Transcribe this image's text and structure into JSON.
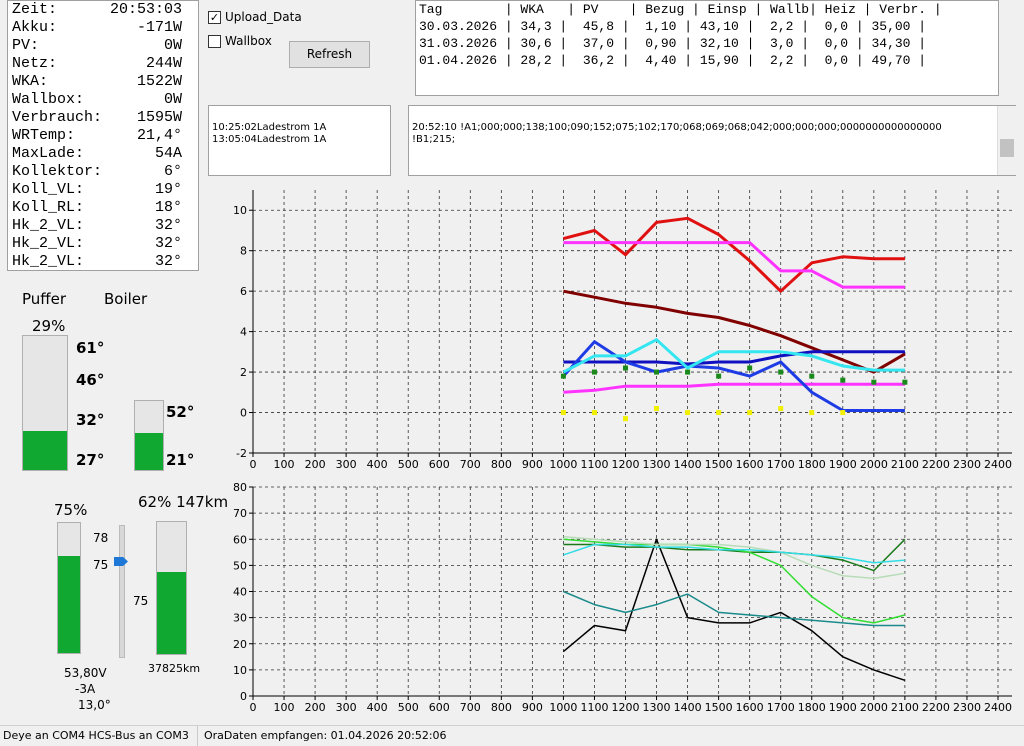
{
  "status": {
    "rows": [
      {
        "label": "Zeit:",
        "value": "20:53:03"
      },
      {
        "label": "Akku:",
        "value": "-171W"
      },
      {
        "label": "PV:",
        "value": "0W"
      },
      {
        "label": "Netz:",
        "value": "244W"
      },
      {
        "label": "WKA:",
        "value": "1522W"
      },
      {
        "label": "Wallbox:",
        "value": "0W"
      },
      {
        "label": "Verbrauch:",
        "value": "1595W"
      },
      {
        "label": "WRTemp:",
        "value": "21,4°"
      },
      {
        "label": "MaxLade:",
        "value": "54A"
      },
      {
        "label": "Kollektor:",
        "value": "6°"
      },
      {
        "label": "Koll_VL:",
        "value": "19°"
      },
      {
        "label": "Koll_RL:",
        "value": "18°"
      },
      {
        "label": "Hk_2_VL:",
        "value": "32°"
      },
      {
        "label": "Hk_2_VL:",
        "value": "32°"
      },
      {
        "label": "Hk_2_VL:",
        "value": "32°"
      }
    ]
  },
  "controls": {
    "upload_data": {
      "label": "Upload_Data",
      "checked": true
    },
    "wallbox": {
      "label": "Wallbox",
      "checked": false
    },
    "refresh": "Refresh"
  },
  "table": {
    "header": "Tag        | WKA   | PV    | Bezug | Einsp | Wallb| Heiz | Verbr. |",
    "rows": [
      "30.03.2026 | 34,3 |  45,8 |  1,10 | 43,10 |  2,2 |  0,0 | 35,00 |",
      "31.03.2026 | 30,6 |  37,0 |  0,90 | 32,10 |  3,0 |  0,0 | 34,30 |",
      "01.04.2026 | 28,2 |  36,2 |  4,40 | 15,90 |  2,2 |  0,0 | 49,70 |"
    ]
  },
  "log_left": [
    "10:25:02Ladestrom 1A",
    "13:05:04Ladestrom 1A"
  ],
  "log_right": [
    "20:52:10 !A1;000;000;138;100;090;152;075;102;170;068;069;068;042;000;000;000;0000000000000000",
    "!B1;215;"
  ],
  "gauges": {
    "puffer": {
      "label": "Puffer",
      "value": 29,
      "value_label": "29%",
      "temps": [
        "61°",
        "46°",
        "32°",
        "27°"
      ]
    },
    "boiler": {
      "label": "Boiler",
      "value": 53,
      "temps": [
        "52°",
        "21°"
      ]
    },
    "battery": {
      "value": 75,
      "value_label": "75%",
      "slider_max": "78",
      "slider_value": "75",
      "voltage": "53,80V",
      "current": "-3A",
      "temp": "13,0°"
    },
    "car": {
      "value": 62,
      "value_label": "62%",
      "range": "147km",
      "slider_low": "75",
      "odometer": "37825km"
    }
  },
  "chart_data": [
    {
      "type": "line",
      "line_width": 3,
      "grid": true,
      "x": [
        1000,
        1100,
        1200,
        1300,
        1400,
        1500,
        1600,
        1700,
        1800,
        1900,
        2000,
        2100
      ],
      "xlim": [
        0,
        2400
      ],
      "xticks": [
        0,
        100,
        200,
        300,
        400,
        500,
        600,
        700,
        800,
        900,
        1000,
        1100,
        1200,
        1300,
        1400,
        1500,
        1600,
        1700,
        1800,
        1900,
        2000,
        2100,
        2200,
        2300,
        2400
      ],
      "ylim": [
        -2,
        11
      ],
      "yticks": [
        -2,
        0,
        2,
        4,
        6,
        8,
        10
      ],
      "series": [
        {
          "color": "#e01010",
          "style": "line",
          "values": [
            8.6,
            9.0,
            7.8,
            9.4,
            9.6,
            8.8,
            7.5,
            6.0,
            7.4,
            7.7,
            7.6,
            7.6
          ]
        },
        {
          "color": "#ff33ff",
          "style": "line",
          "values": [
            8.4,
            8.4,
            8.4,
            8.4,
            8.4,
            8.4,
            8.4,
            7.0,
            7.0,
            6.2,
            6.2,
            6.2
          ]
        },
        {
          "color": "#ff33ff",
          "style": "line",
          "values": [
            1.0,
            1.1,
            1.3,
            1.3,
            1.3,
            1.4,
            1.4,
            1.4,
            1.4,
            1.4,
            1.4,
            1.4
          ]
        },
        {
          "color": "#800000",
          "style": "line",
          "values": [
            6.0,
            5.7,
            5.4,
            5.2,
            4.9,
            4.7,
            4.3,
            3.8,
            3.2,
            2.6,
            2.0,
            2.9
          ]
        },
        {
          "color": "#1010c0",
          "style": "line",
          "values": [
            2.5,
            2.5,
            2.5,
            2.5,
            2.4,
            2.5,
            2.5,
            2.8,
            3.0,
            3.0,
            3.0,
            3.0
          ]
        },
        {
          "color": "#1e3ce6",
          "style": "line",
          "values": [
            1.8,
            3.5,
            2.5,
            2.0,
            2.3,
            2.2,
            1.8,
            2.5,
            1.0,
            0.1,
            0.1,
            0.1
          ]
        },
        {
          "color": "#33e6f0",
          "style": "line",
          "values": [
            2.0,
            2.8,
            2.8,
            3.6,
            2.2,
            3.0,
            3.0,
            3.0,
            2.8,
            2.3,
            2.1,
            2.1
          ]
        },
        {
          "color": "#1a8a1a",
          "style": "dots",
          "values": [
            1.8,
            2.0,
            2.2,
            2.0,
            2.0,
            1.8,
            2.2,
            2.0,
            1.8,
            1.6,
            1.5,
            1.5
          ]
        },
        {
          "color": "#f0f000",
          "style": "dots",
          "values": [
            0.0,
            0.0,
            -0.3,
            0.2,
            0.0,
            0.0,
            0.0,
            0.2,
            0.0,
            0.0,
            null,
            null
          ]
        }
      ]
    },
    {
      "type": "line",
      "line_width": 1.5,
      "grid": true,
      "x": [
        1000,
        1100,
        1200,
        1300,
        1400,
        1500,
        1600,
        1700,
        1800,
        1900,
        2000,
        2100
      ],
      "xlim": [
        0,
        2400
      ],
      "xticks": [
        0,
        100,
        200,
        300,
        400,
        500,
        600,
        700,
        800,
        900,
        1000,
        1100,
        1200,
        1300,
        1400,
        1500,
        1600,
        1700,
        1800,
        1900,
        2000,
        2100,
        2200,
        2300,
        2400
      ],
      "ylim": [
        0,
        80
      ],
      "yticks": [
        0,
        10,
        20,
        30,
        40,
        50,
        60,
        70,
        80
      ],
      "series": [
        {
          "color": "#000000",
          "style": "line",
          "values": [
            17,
            27,
            25,
            60,
            30,
            28,
            28,
            32,
            25,
            15,
            10,
            6
          ]
        },
        {
          "color": "#1a7a1a",
          "style": "line",
          "values": [
            58,
            58,
            57,
            57,
            56,
            56,
            55,
            55,
            54,
            52,
            48,
            60
          ]
        },
        {
          "color": "#33dd33",
          "style": "line",
          "values": [
            60,
            59,
            58,
            58,
            58,
            57,
            55,
            50,
            38,
            30,
            28,
            31
          ]
        },
        {
          "color": "#b8dcb8",
          "style": "line",
          "values": [
            61,
            60,
            59,
            58,
            58,
            58,
            57,
            55,
            50,
            46,
            45,
            47
          ]
        },
        {
          "color": "#33dde6",
          "style": "line",
          "values": [
            54,
            58,
            58,
            57,
            57,
            56,
            56,
            55,
            54,
            53,
            51,
            52
          ]
        },
        {
          "color": "#1a8a8a",
          "style": "line",
          "values": [
            40,
            35,
            32,
            35,
            39,
            32,
            31,
            30,
            29,
            28,
            27,
            27
          ]
        }
      ]
    }
  ],
  "status_bar": [
    "Deye an COM4  HCS-Bus an COM3",
    "OraDaten empfangen: 01.04.2026 20:52:06"
  ]
}
